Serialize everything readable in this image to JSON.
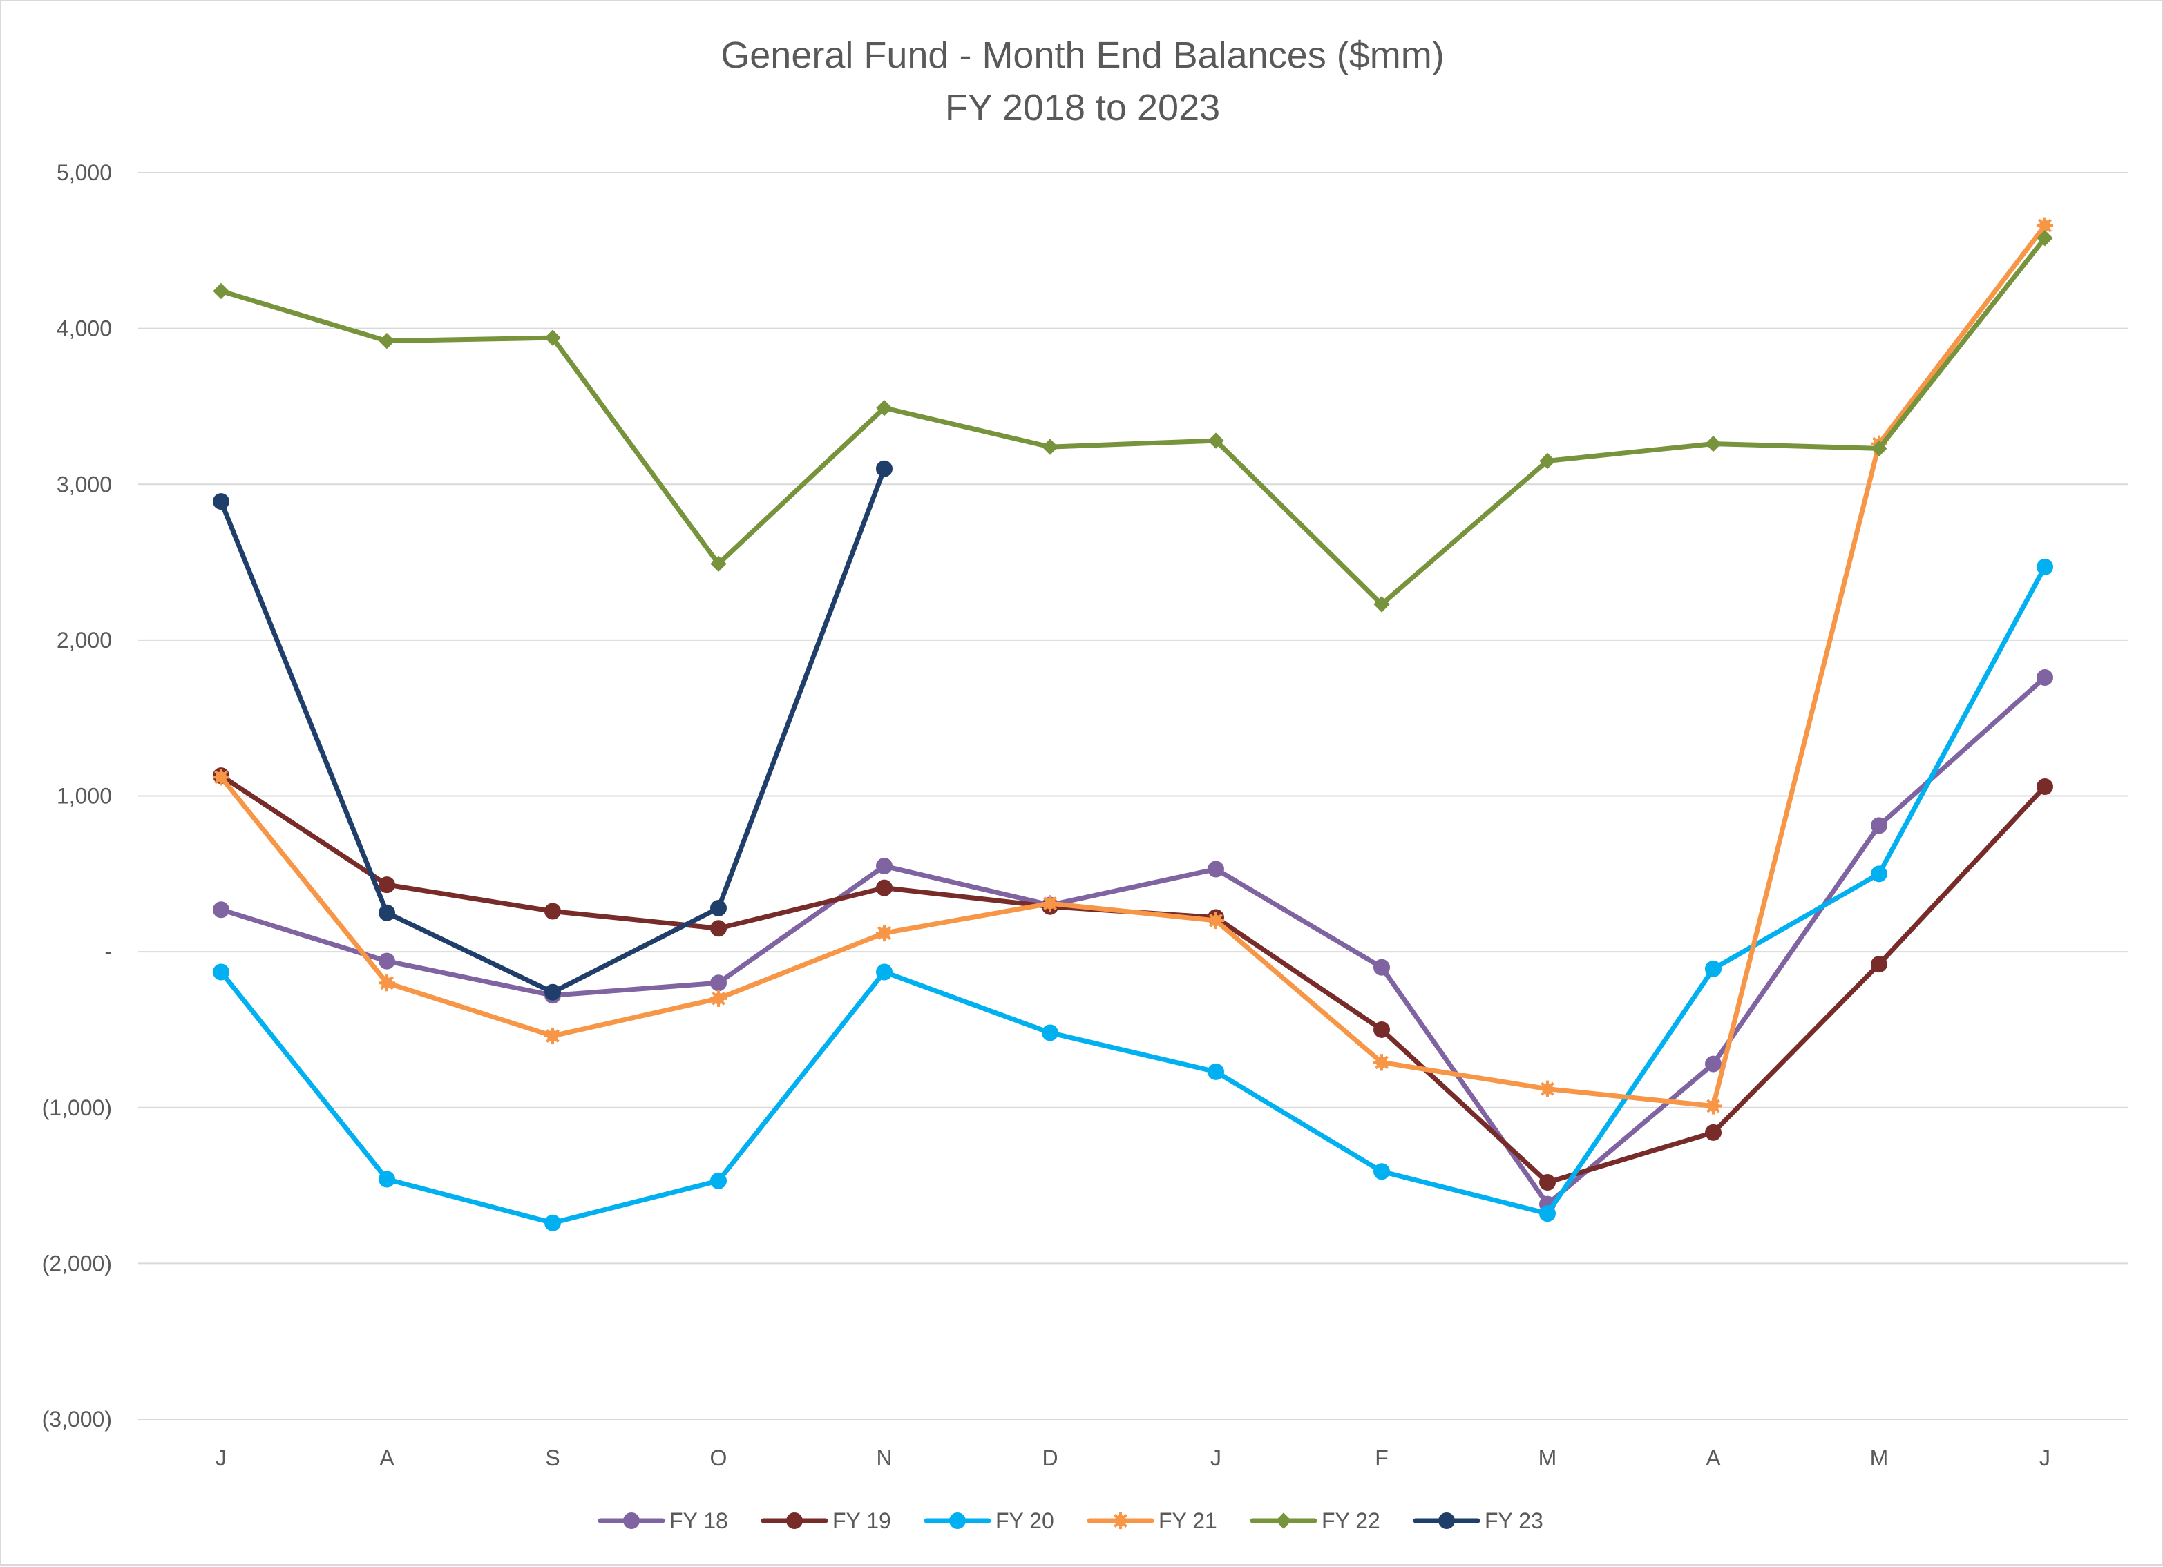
{
  "chart_data": {
    "type": "line",
    "title": "General Fund - Month End Balances ($mm)",
    "subtitle": "FY 2018 to 2023",
    "xlabel": "",
    "ylabel": "",
    "categories": [
      "J",
      "A",
      "S",
      "O",
      "N",
      "D",
      "J",
      "F",
      "M",
      "A",
      "M",
      "J"
    ],
    "ylim": [
      -3000,
      5000
    ],
    "y_ticks": [
      5000,
      4000,
      3000,
      2000,
      1000,
      0,
      -1000,
      -2000,
      -3000
    ],
    "y_tick_labels": [
      "5,000",
      "4,000",
      "3,000",
      "2,000",
      "1,000",
      "-",
      "(1,000)",
      "(2,000)",
      "(3,000)"
    ],
    "grid": true,
    "legend_position": "bottom",
    "series": [
      {
        "name": "FY 18",
        "color": "#8064a2",
        "marker": "circle",
        "values": [
          270,
          -60,
          -280,
          -200,
          550,
          300,
          530,
          -100,
          -1620,
          -720,
          810,
          1760
        ]
      },
      {
        "name": "FY 19",
        "color": "#772c2a",
        "marker": "circle",
        "values": [
          1130,
          430,
          260,
          150,
          410,
          290,
          220,
          -500,
          -1480,
          -1160,
          -80,
          1060
        ]
      },
      {
        "name": "FY 20",
        "color": "#00b0f0",
        "marker": "circle",
        "values": [
          -130,
          -1460,
          -1740,
          -1470,
          -130,
          -520,
          -770,
          -1410,
          -1680,
          -110,
          500,
          2470
        ]
      },
      {
        "name": "FY 21",
        "color": "#f79646",
        "marker": "star",
        "values": [
          1120,
          -200,
          -540,
          -300,
          120,
          310,
          200,
          -710,
          -880,
          -990,
          3260,
          4660
        ]
      },
      {
        "name": "FY 22",
        "color": "#77933c",
        "marker": "diamond",
        "values": [
          4240,
          3920,
          3940,
          2490,
          3490,
          3240,
          3280,
          2230,
          3150,
          3260,
          3230,
          4580
        ]
      },
      {
        "name": "FY 23",
        "color": "#1f3f6a",
        "marker": "circle",
        "values": [
          2890,
          250,
          -260,
          280,
          3100,
          null,
          null,
          null,
          null,
          null,
          null,
          null
        ]
      }
    ]
  }
}
